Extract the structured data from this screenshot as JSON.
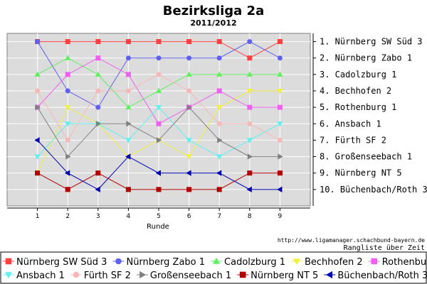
{
  "chart_data": {
    "type": "line",
    "title": "Bezirksliga 2a",
    "subtitle": "2011/2012",
    "xlabel": "Runde",
    "x": [
      1,
      2,
      3,
      4,
      5,
      6,
      7,
      8,
      9
    ],
    "xlim": [
      0,
      10
    ],
    "ylim": [
      0.5,
      11
    ],
    "y_inverted": true,
    "grid": true,
    "legend_position": "bottom",
    "right_axis_labels": [
      "1. Nürnberg SW Süd 3",
      "2. Nürnberg Zabo 1",
      "3. Cadolzburg 1",
      "4. Bechhofen 2",
      "5. Rothenburg 1",
      "6. Ansbach 1",
      "7. Fürth SF 2",
      "8. Großenseebach 1",
      "9. Nürnberg NT 5",
      "10. Büchenbach/Roth 3"
    ],
    "series": [
      {
        "name": "Nürnberg SW Süd 3",
        "color": "#ff4040",
        "marker": "square",
        "values": [
          1,
          1,
          1,
          1,
          1,
          1,
          1,
          2,
          1
        ]
      },
      {
        "name": "Nürnberg Zabo 1",
        "color": "#6060f0",
        "marker": "circle",
        "values": [
          1,
          4,
          5,
          2,
          2,
          2,
          2,
          1,
          2
        ]
      },
      {
        "name": "Cadolzburg 1",
        "color": "#60f060",
        "marker": "triangle-up",
        "values": [
          3,
          2,
          3,
          5,
          4,
          3,
          3,
          3,
          3
        ]
      },
      {
        "name": "Bechhofen 2",
        "color": "#f0f040",
        "marker": "triangle-down",
        "values": [
          9,
          5,
          6,
          8,
          7,
          8,
          5,
          4,
          4
        ]
      },
      {
        "name": "Rothenburg 1",
        "color": "#f060f0",
        "marker": "square",
        "values": [
          5,
          3,
          2,
          3,
          6,
          5,
          4,
          5,
          5
        ]
      },
      {
        "name": "Ansbach 1",
        "color": "#60f0f0",
        "marker": "triangle-down",
        "values": [
          8,
          6,
          6,
          7,
          5,
          7,
          8,
          7,
          6
        ]
      },
      {
        "name": "Fürth SF 2",
        "color": "#f8b8b8",
        "marker": "circle",
        "values": [
          4,
          7,
          4,
          4,
          3,
          4,
          6,
          6,
          7
        ]
      },
      {
        "name": "Großenseebach 1",
        "color": "#808080",
        "marker": "triangle-right",
        "values": [
          5,
          8,
          6,
          6,
          7,
          5,
          7,
          8,
          8
        ]
      },
      {
        "name": "Nürnberg NT 5",
        "color": "#b00000",
        "marker": "square",
        "values": [
          9,
          10,
          9,
          10,
          10,
          10,
          10,
          9,
          9
        ]
      },
      {
        "name": "Büchenbach/Roth 3",
        "color": "#0000b0",
        "marker": "triangle-left",
        "values": [
          7,
          9,
          10,
          8,
          9,
          9,
          9,
          10,
          10
        ]
      }
    ]
  },
  "footer": {
    "url": "http://www.ligamanager.schachbund-bayern.de",
    "caption": "Rangliste über Zeit"
  }
}
